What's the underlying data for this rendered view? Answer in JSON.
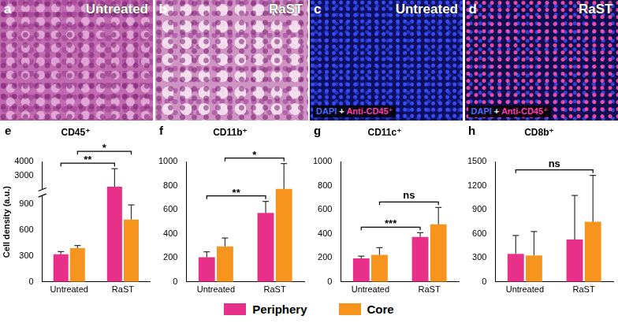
{
  "images": [
    {
      "panel": "a",
      "label": "Untreated"
    },
    {
      "panel": "b",
      "label": "RaST"
    },
    {
      "panel": "c",
      "label": "Untreated",
      "caption": [
        "DAPI",
        "+",
        "Anti-CD45⁺"
      ]
    },
    {
      "panel": "d",
      "label": "RaST",
      "caption": [
        "DAPI",
        "+",
        "Anti-CD45⁺"
      ]
    }
  ],
  "chart_data": [
    {
      "type": "bar",
      "panel": "e",
      "title": "CD45⁺",
      "y_label": "Cell density (a.u.)",
      "categories": [
        "Untreated",
        "RaST"
      ],
      "series": [
        {
          "name": "Periphery",
          "color": "#e8308a",
          "values": [
            320,
            2200
          ],
          "errors": [
            30,
            1300
          ]
        },
        {
          "name": "Core",
          "color": "#f7941d",
          "values": [
            390,
            720
          ],
          "errors": [
            30,
            170
          ]
        }
      ],
      "ylim": [
        0,
        4000
      ],
      "yticks": [
        0,
        300,
        600,
        900,
        3000,
        4000
      ],
      "y_break": [
        1000,
        2000
      ],
      "grid": false,
      "annotations": [
        {
          "text": "**",
          "from": [
            "Untreated",
            "Periphery"
          ],
          "to": [
            "RaST",
            "Periphery"
          ]
        },
        {
          "text": "*",
          "from": [
            "Untreated",
            "Core"
          ],
          "to": [
            "RaST",
            "Core"
          ]
        }
      ]
    },
    {
      "type": "bar",
      "panel": "f",
      "title": "CD11b⁺",
      "categories": [
        "Untreated",
        "RaST"
      ],
      "series": [
        {
          "name": "Periphery",
          "color": "#e8308a",
          "values": [
            205,
            575
          ],
          "errors": [
            45,
            95
          ]
        },
        {
          "name": "Core",
          "color": "#f7941d",
          "values": [
            295,
            775
          ],
          "errors": [
            70,
            210
          ]
        }
      ],
      "ylim": [
        0,
        1000
      ],
      "yticks": [
        0,
        200,
        400,
        600,
        800,
        1000
      ],
      "grid": false,
      "annotations": [
        {
          "text": "**",
          "from": [
            "Untreated",
            "Periphery"
          ],
          "to": [
            "RaST",
            "Periphery"
          ]
        },
        {
          "text": "*",
          "from": [
            "Untreated",
            "Core"
          ],
          "to": [
            "RaST",
            "Core"
          ]
        }
      ]
    },
    {
      "type": "bar",
      "panel": "g",
      "title": "CD11c⁺",
      "categories": [
        "Untreated",
        "RaST"
      ],
      "series": [
        {
          "name": "Periphery",
          "color": "#e8308a",
          "values": [
            195,
            375
          ],
          "errors": [
            20,
            35
          ]
        },
        {
          "name": "Core",
          "color": "#f7941d",
          "values": [
            225,
            480
          ],
          "errors": [
            60,
            140
          ]
        }
      ],
      "ylim": [
        0,
        1000
      ],
      "yticks": [
        0,
        200,
        400,
        600,
        800,
        1000
      ],
      "grid": false,
      "annotations": [
        {
          "text": "***",
          "from": [
            "Untreated",
            "Periphery"
          ],
          "to": [
            "RaST",
            "Periphery"
          ]
        },
        {
          "text": "ns",
          "from": [
            "Untreated",
            "Core"
          ],
          "to": [
            "RaST",
            "Core"
          ]
        }
      ]
    },
    {
      "type": "bar",
      "panel": "h",
      "title": "CD8b⁺",
      "categories": [
        "Untreated",
        "RaST"
      ],
      "series": [
        {
          "name": "Periphery",
          "color": "#e8308a",
          "values": [
            350,
            530
          ],
          "errors": [
            230,
            550
          ]
        },
        {
          "name": "Core",
          "color": "#f7941d",
          "values": [
            330,
            750
          ],
          "errors": [
            300,
            580
          ]
        }
      ],
      "ylim": [
        0,
        1500
      ],
      "yticks": [
        0,
        300,
        600,
        900,
        1200,
        1500
      ],
      "grid": false,
      "annotations": [
        {
          "text": "ns",
          "from": [
            "Untreated",
            "Periphery"
          ],
          "to": [
            "RaST",
            "Core"
          ]
        }
      ]
    }
  ]
}
